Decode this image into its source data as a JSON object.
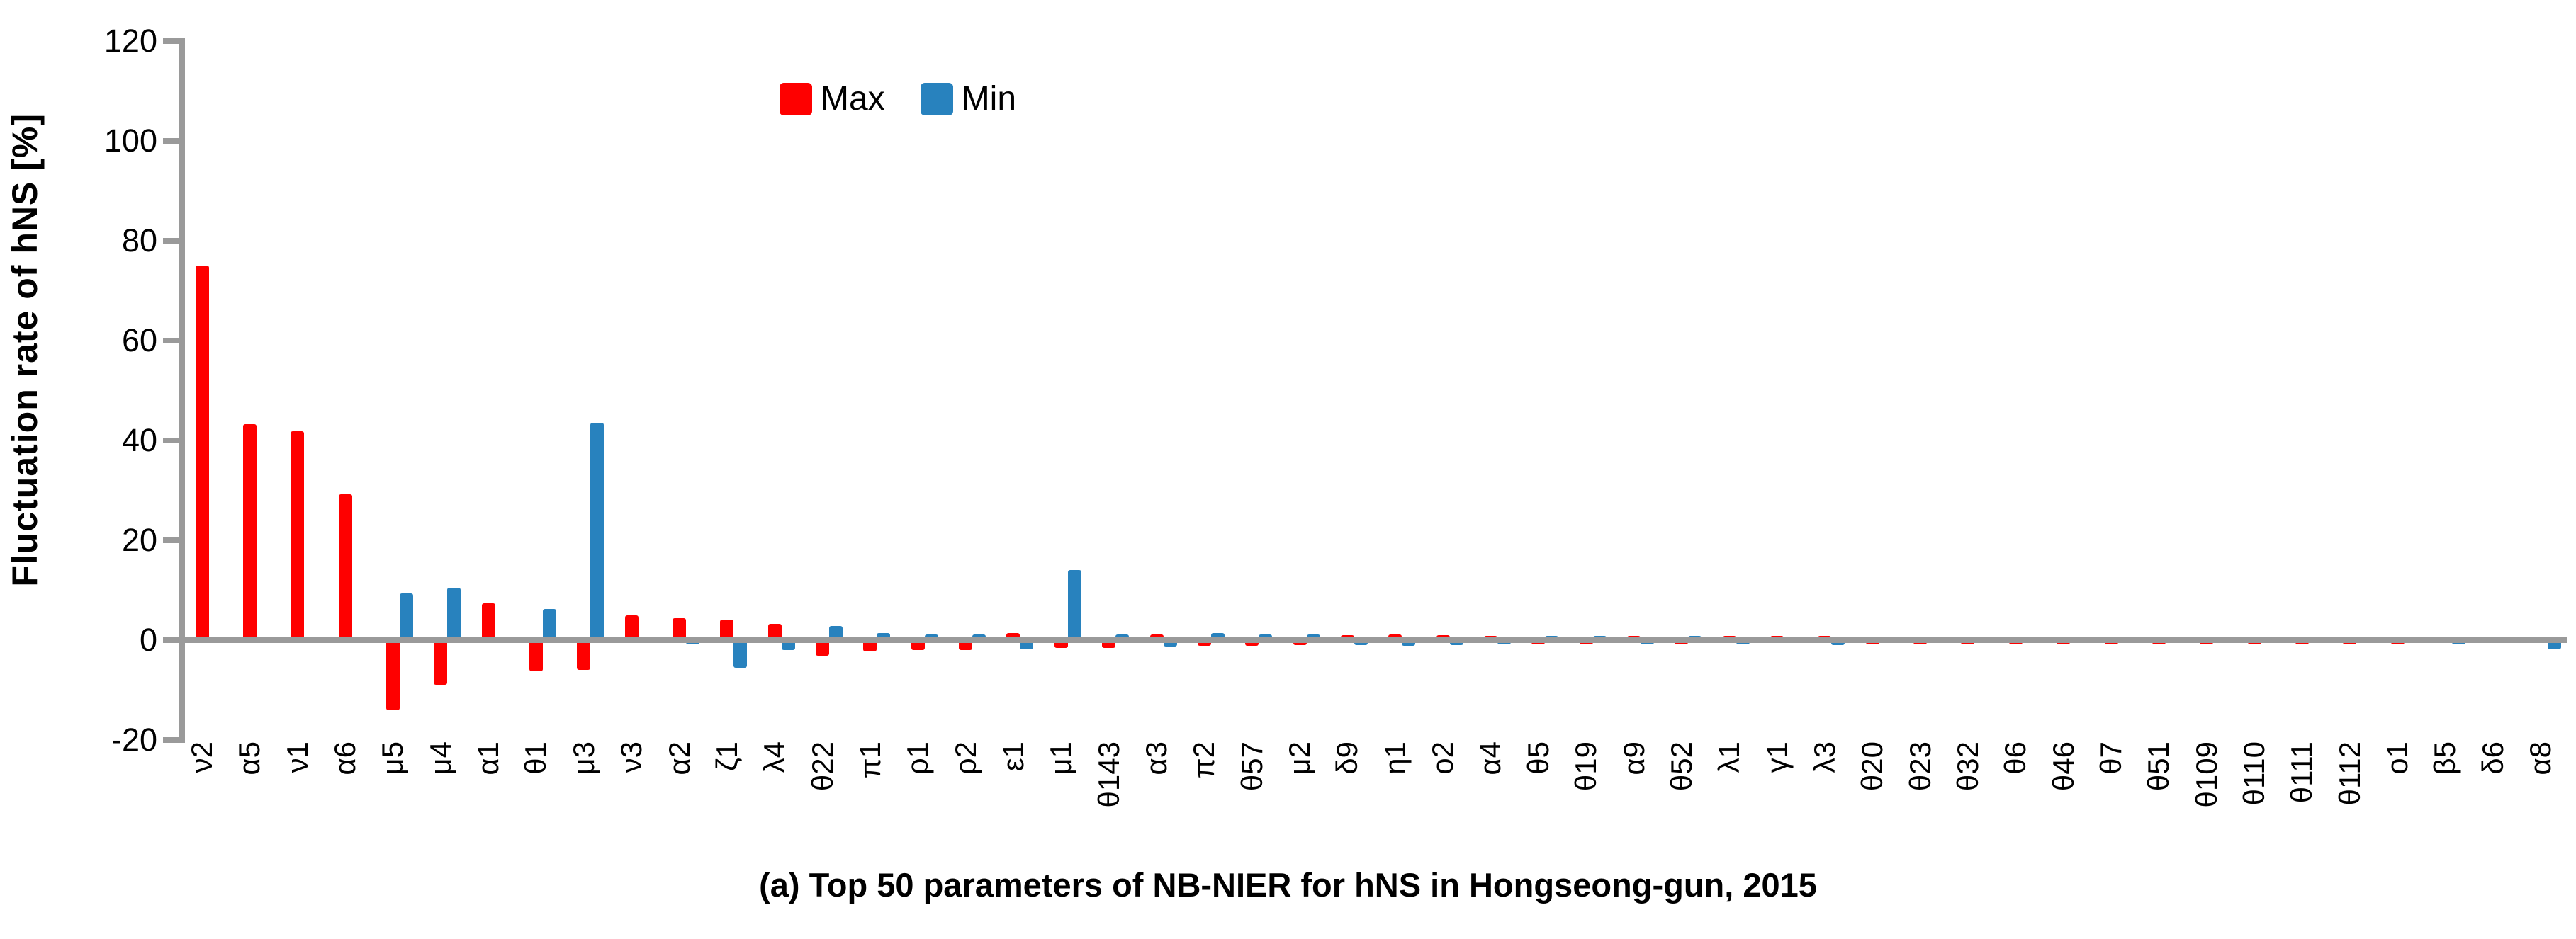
{
  "y_axis_title": "Fluctuation rate of hNS [%]",
  "caption": "(a) Top 50 parameters of NB-NIER for hNS in Hongseong-gun, 2015",
  "legend": {
    "max_label": "Max",
    "min_label": "Min"
  },
  "colors": {
    "max": "#fe0000",
    "min": "#2882be",
    "axis": "#9a9a9a",
    "text": "#000000"
  },
  "chart_data": {
    "type": "bar",
    "title": "",
    "xlabel": "",
    "ylabel": "Fluctuation rate of hNS [%]",
    "ylim": [
      -20,
      120
    ],
    "y_ticks": [
      120,
      100,
      80,
      60,
      40,
      20,
      0,
      -20
    ],
    "grid": false,
    "legend_position": "top-center",
    "categories": [
      "ν2",
      "α5",
      "ν1",
      "α6",
      "μ5",
      "μ4",
      "α1",
      "θ1",
      "μ3",
      "ν3",
      "α2",
      "ζ1",
      "λ4",
      "θ22",
      "π1",
      "ρ1",
      "ρ2",
      "ε1",
      "μ1",
      "θ143",
      "α3",
      "π2",
      "θ57",
      "μ2",
      "δ9",
      "η1",
      "ο2",
      "α4",
      "θ5",
      "θ19",
      "α9",
      "θ52",
      "λ1",
      "γ1",
      "λ3",
      "θ20",
      "θ23",
      "θ32",
      "θ6",
      "θ46",
      "θ7",
      "θ51",
      "θ109",
      "θ110",
      "θ111",
      "θ112",
      "ο1",
      "β5",
      "δ6",
      "α8"
    ],
    "series": [
      {
        "name": "Max",
        "color": "#fe0000",
        "values": [
          75.0,
          43.3,
          41.8,
          29.2,
          -14.1,
          -8.9,
          7.4,
          -6.2,
          -6.0,
          4.9,
          4.4,
          4.1,
          3.3,
          -3.1,
          -2.3,
          -2.0,
          -2.0,
          1.4,
          -1.6,
          -1.5,
          1.1,
          -1.1,
          -1.1,
          -1.0,
          1.0,
          1.2,
          1.0,
          0.9,
          -0.9,
          -0.8,
          0.8,
          -0.8,
          0.8,
          0.8,
          0.8,
          -0.8,
          -0.8,
          -0.8,
          -0.8,
          -0.8,
          -0.8,
          -0.8,
          -0.8,
          -0.8,
          -0.8,
          -0.8,
          -0.8,
          -0.1,
          -0.4,
          -0.4
        ]
      },
      {
        "name": "Min",
        "color": "#2882be",
        "values": [
          -0.2,
          -0.2,
          -0.2,
          -0.2,
          9.4,
          10.5,
          -0.2,
          6.2,
          43.5,
          -0.3,
          -0.9,
          -5.5,
          -2.0,
          2.8,
          1.4,
          1.1,
          1.1,
          -1.8,
          14.0,
          1.1,
          -1.3,
          1.4,
          1.2,
          1.2,
          -1.0,
          -1.2,
          -1.0,
          -0.9,
          0.9,
          0.8,
          -0.8,
          0.8,
          -0.9,
          -0.5,
          -1.0,
          0.7,
          0.7,
          0.7,
          0.7,
          0.7,
          0.6,
          0.2,
          0.7,
          0.2,
          0.1,
          0.1,
          0.7,
          -0.9,
          -0.1,
          -1.8
        ]
      }
    ]
  }
}
